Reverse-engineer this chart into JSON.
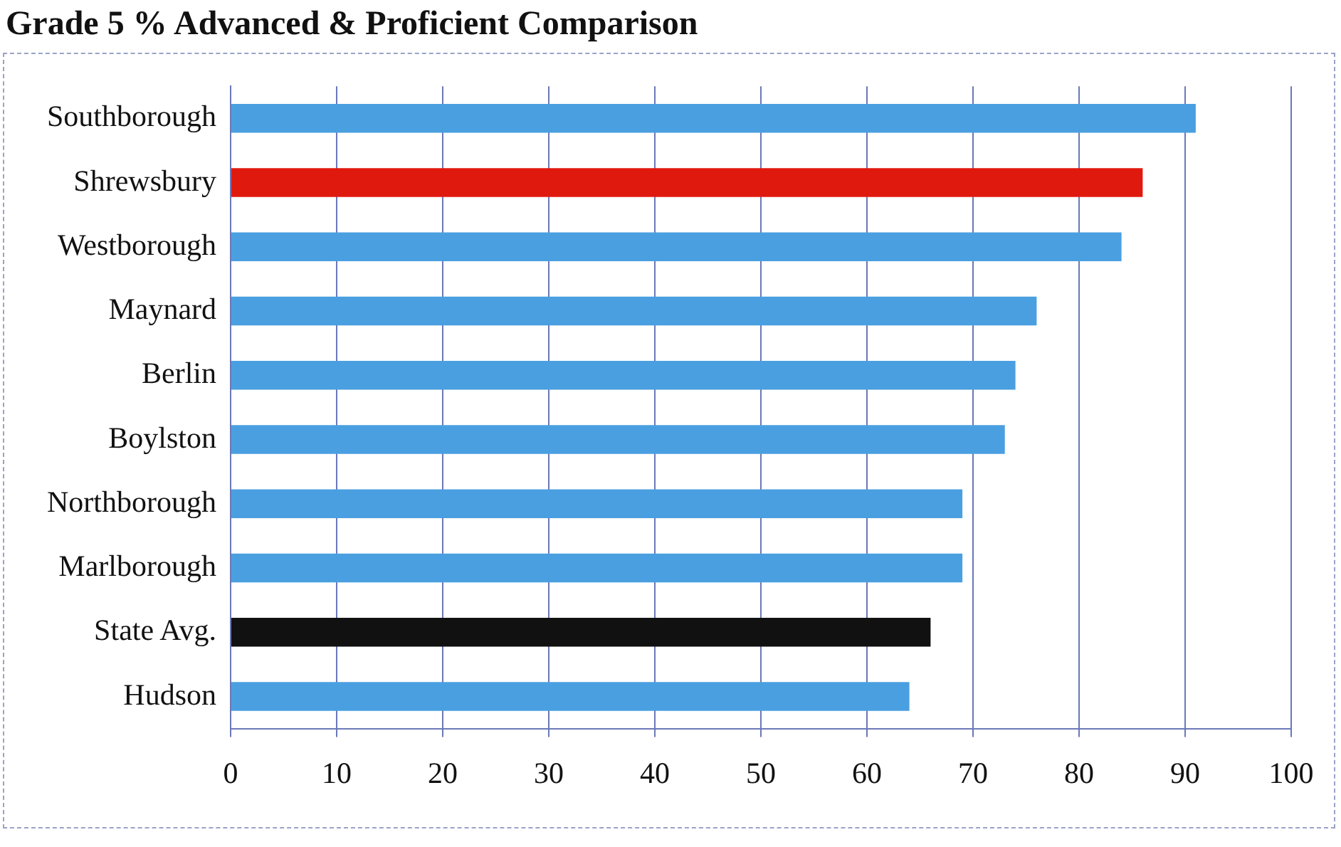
{
  "chart_data": {
    "type": "bar",
    "orientation": "horizontal",
    "title": "Grade 5 % Advanced & Proficient Comparison",
    "categories": [
      "Southborough",
      "Shrewsbury",
      "Westborough",
      "Maynard",
      "Berlin",
      "Boylston",
      "Northborough",
      "Marlborough",
      "State Avg.",
      "Hudson"
    ],
    "values": [
      91,
      86,
      84,
      76,
      74,
      73,
      69,
      69,
      66,
      64
    ],
    "colors": [
      "#4a9fe0",
      "#e0190f",
      "#4a9fe0",
      "#4a9fe0",
      "#4a9fe0",
      "#4a9fe0",
      "#4a9fe0",
      "#4a9fe0",
      "#111111",
      "#4a9fe0"
    ],
    "xlim": [
      0,
      100
    ],
    "xticks": [
      0,
      10,
      20,
      30,
      40,
      50,
      60,
      70,
      80,
      90,
      100
    ],
    "grid": "x",
    "legend": false
  }
}
